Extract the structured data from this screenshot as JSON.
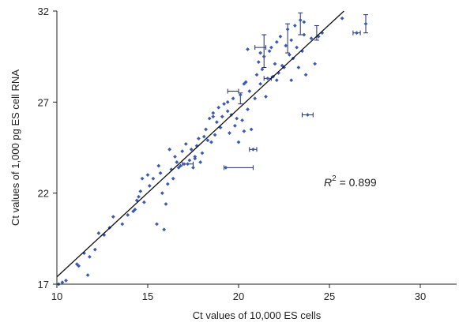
{
  "chart_data": {
    "type": "scatter",
    "xlabel": "Ct values of 10,000 ES cells",
    "ylabel": "Ct values of 1,000 pg ES cell RNA",
    "xlim": [
      10,
      32
    ],
    "ylim": [
      17,
      32
    ],
    "x_ticks": [
      "10",
      "15",
      "20",
      "25",
      "30"
    ],
    "y_ticks": [
      "17",
      "22",
      "27",
      "32"
    ],
    "grid": false,
    "annotation": {
      "var": "R",
      "exp": "2",
      "rest": " = 0.899"
    },
    "marker_color": "#3a5bb0",
    "errorbar_color": "#1f2f6a",
    "fit_line": {
      "x": [
        10,
        25.8
      ],
      "y": [
        17.4,
        32
      ]
    },
    "points": [
      [
        10.1,
        17.0
      ],
      [
        10.3,
        17.1
      ],
      [
        10.5,
        17.2
      ],
      [
        11.1,
        18.1
      ],
      [
        11.2,
        18.0
      ],
      [
        11.5,
        18.7
      ],
      [
        11.7,
        17.5
      ],
      [
        11.8,
        18.5
      ],
      [
        12.1,
        18.9
      ],
      [
        12.6,
        19.7
      ],
      [
        12.9,
        20.1
      ],
      [
        13.6,
        20.3
      ],
      [
        13.9,
        20.8
      ],
      [
        14.2,
        21.0
      ],
      [
        14.3,
        21.1
      ],
      [
        14.4,
        21.6
      ],
      [
        14.5,
        21.8
      ],
      [
        14.6,
        22.1
      ],
      [
        14.7,
        22.8
      ],
      [
        14.8,
        21.5
      ],
      [
        15.0,
        23.0
      ],
      [
        15.1,
        22.4
      ],
      [
        15.3,
        22.8
      ],
      [
        15.5,
        20.3
      ],
      [
        15.6,
        23.5
      ],
      [
        15.7,
        23.1
      ],
      [
        15.8,
        22.0
      ],
      [
        16.0,
        21.4
      ],
      [
        16.1,
        22.5
      ],
      [
        16.2,
        24.4
      ],
      [
        16.3,
        23.3
      ],
      [
        16.4,
        22.8
      ],
      [
        16.5,
        24.0
      ],
      [
        16.6,
        23.7
      ],
      [
        16.7,
        23.4
      ],
      [
        16.9,
        24.3
      ],
      [
        17.0,
        23.6
      ],
      [
        17.1,
        24.7
      ],
      [
        17.2,
        23.6
      ],
      [
        17.3,
        23.8
      ],
      [
        17.4,
        24.4
      ],
      [
        17.5,
        23.4
      ],
      [
        17.6,
        23.9
      ],
      [
        17.7,
        24.6
      ],
      [
        17.8,
        25.0
      ],
      [
        17.9,
        23.7
      ],
      [
        18.0,
        24.2
      ],
      [
        18.1,
        25.1
      ],
      [
        18.2,
        25.5
      ],
      [
        18.3,
        24.9
      ],
      [
        18.4,
        26.1
      ],
      [
        18.5,
        24.8
      ],
      [
        18.6,
        26.4
      ],
      [
        18.7,
        25.2
      ],
      [
        18.8,
        25.9
      ],
      [
        18.9,
        26.7
      ],
      [
        19.0,
        25.6
      ],
      [
        19.1,
        26.2
      ],
      [
        19.2,
        26.9
      ],
      [
        19.3,
        23.4
      ],
      [
        19.4,
        26.5
      ],
      [
        19.5,
        25.3
      ],
      [
        19.6,
        26.3
      ],
      [
        19.7,
        27.2
      ],
      [
        19.8,
        25.7
      ],
      [
        19.9,
        26.1
      ],
      [
        20.0,
        24.8
      ],
      [
        20.1,
        27.4
      ],
      [
        20.2,
        26.0
      ],
      [
        20.3,
        25.4
      ],
      [
        20.4,
        28.1
      ],
      [
        20.5,
        26.6
      ],
      [
        20.6,
        27.6
      ],
      [
        20.7,
        25.5
      ],
      [
        20.8,
        24.4
      ],
      [
        20.9,
        27.2
      ],
      [
        21.0,
        28.5
      ],
      [
        21.1,
        29.2
      ],
      [
        21.2,
        28.0
      ],
      [
        21.3,
        28.8
      ],
      [
        21.4,
        29.5
      ],
      [
        21.5,
        27.3
      ],
      [
        21.6,
        28.3
      ],
      [
        21.7,
        29.8
      ],
      [
        21.8,
        30.0
      ],
      [
        21.9,
        28.4
      ],
      [
        22.0,
        29.1
      ],
      [
        22.1,
        30.3
      ],
      [
        22.2,
        28.6
      ],
      [
        22.3,
        30.6
      ],
      [
        22.4,
        29.0
      ],
      [
        22.5,
        28.9
      ],
      [
        22.6,
        30.1
      ],
      [
        22.7,
        31.0
      ],
      [
        22.8,
        29.6
      ],
      [
        22.9,
        30.4
      ],
      [
        23.0,
        29.4
      ],
      [
        23.1,
        31.2
      ],
      [
        23.2,
        30.0
      ],
      [
        23.3,
        28.9
      ],
      [
        23.4,
        31.5
      ],
      [
        23.5,
        29.8
      ],
      [
        23.6,
        30.7
      ],
      [
        23.7,
        28.5
      ],
      [
        23.8,
        26.3
      ],
      [
        24.0,
        30.5
      ],
      [
        24.2,
        29.1
      ],
      [
        24.4,
        30.6
      ],
      [
        24.6,
        30.8
      ],
      [
        25.7,
        31.6
      ],
      [
        26.5,
        30.8
      ],
      [
        27.0,
        31.3
      ],
      [
        23.6,
        31.4
      ],
      [
        22.9,
        28.2
      ],
      [
        20.5,
        29.9
      ],
      [
        17.6,
        24.0
      ],
      [
        19.4,
        27.0
      ],
      [
        15.9,
        20.0
      ],
      [
        16.8,
        23.5
      ],
      [
        18.6,
        26.2
      ],
      [
        21.2,
        29.7
      ],
      [
        13.1,
        20.7
      ],
      [
        12.3,
        19.8
      ],
      [
        22.1,
        28.2
      ],
      [
        20.3,
        28.0
      ]
    ],
    "error_bars": [
      {
        "x": 20.0,
        "y": 23.4,
        "xerr": 0.8,
        "yerr": 0
      },
      {
        "x": 21.2,
        "y": 30.0,
        "xerr": 0.3,
        "yerr": 0
      },
      {
        "x": 21.4,
        "y": 29.8,
        "xerr": 0,
        "yerr": 0.9
      },
      {
        "x": 22.7,
        "y": 30.5,
        "xerr": 0,
        "yerr": 0.8
      },
      {
        "x": 23.4,
        "y": 31.3,
        "xerr": 0,
        "yerr": 0.6
      },
      {
        "x": 24.3,
        "y": 30.8,
        "xerr": 0,
        "yerr": 0.4
      },
      {
        "x": 27.0,
        "y": 31.3,
        "xerr": 0,
        "yerr": 0.5
      },
      {
        "x": 26.5,
        "y": 30.8,
        "xerr": 0.2,
        "yerr": 0
      },
      {
        "x": 23.8,
        "y": 26.3,
        "xerr": 0.3,
        "yerr": 0
      },
      {
        "x": 20.8,
        "y": 24.4,
        "xerr": 0.2,
        "yerr": 0
      },
      {
        "x": 19.7,
        "y": 27.6,
        "xerr": 0.3,
        "yerr": 0
      },
      {
        "x": 20.1,
        "y": 27.2,
        "xerr": 0,
        "yerr": 0.3
      },
      {
        "x": 17.2,
        "y": 23.6,
        "xerr": 0.3,
        "yerr": 0
      },
      {
        "x": 21.6,
        "y": 28.3,
        "xerr": 0.2,
        "yerr": 0
      }
    ]
  }
}
